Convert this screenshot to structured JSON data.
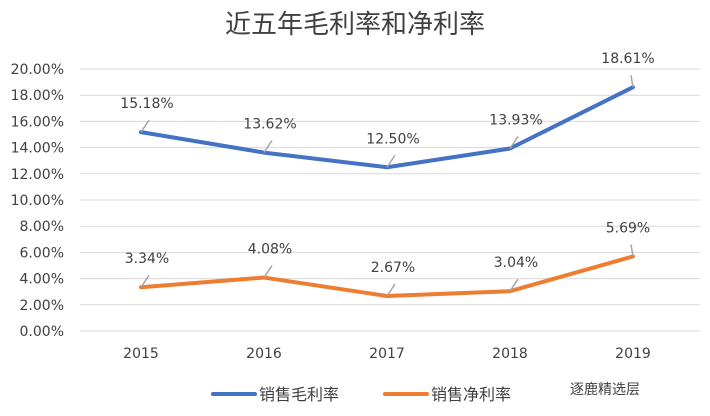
{
  "chart_data": {
    "type": "line",
    "title": "近五年毛利率和净利率",
    "categories": [
      "2015",
      "2016",
      "2017",
      "2018",
      "2019"
    ],
    "series": [
      {
        "name": "销售毛利率",
        "values": [
          15.18,
          13.62,
          12.5,
          13.93,
          18.61
        ],
        "labels": [
          "15.18%",
          "13.62%",
          "12.50%",
          "13.93%",
          "18.61%"
        ],
        "color": "#4472C4"
      },
      {
        "name": "销售净利率",
        "values": [
          3.34,
          4.08,
          2.67,
          3.04,
          5.69
        ],
        "labels": [
          "3.34%",
          "4.08%",
          "2.67%",
          "3.04%",
          "5.69%"
        ],
        "color": "#ED7D31"
      }
    ],
    "yticks": [
      "0.00%",
      "2.00%",
      "4.00%",
      "6.00%",
      "8.00%",
      "10.00%",
      "12.00%",
      "14.00%",
      "16.00%",
      "18.00%",
      "20.00%"
    ],
    "ylim": [
      0,
      20
    ],
    "grid": true,
    "legend": "bottom"
  },
  "watermark": "逐鹿精选层"
}
